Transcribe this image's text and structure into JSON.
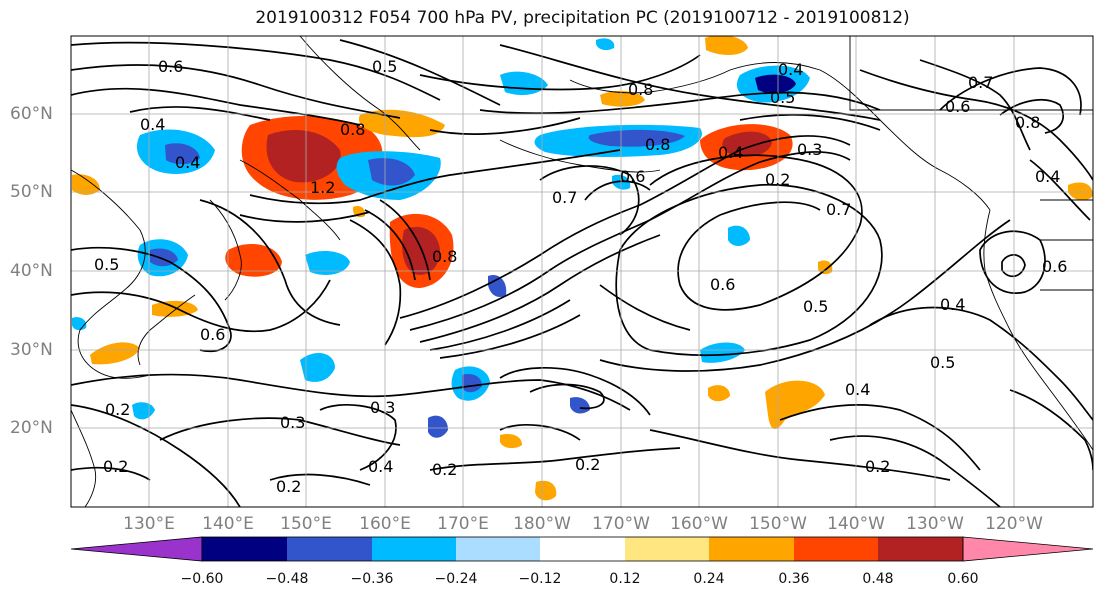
{
  "title": "2019100312 F054 700 hPa PV, precipitation PC (2019100712 - 2019100812)",
  "map": {
    "lat_labels": [
      "60°N",
      "50°N",
      "40°N",
      "30°N",
      "20°N"
    ],
    "lon_labels": [
      "130°E",
      "140°E",
      "150°E",
      "160°E",
      "170°E",
      "180°W",
      "170°W",
      "160°W",
      "150°W",
      "140°W",
      "130°W",
      "120°W"
    ],
    "contour_labels": [
      "0.6",
      "0.5",
      "0.4",
      "0.7",
      "0.8",
      "0.4",
      "0.8",
      "0.5",
      "0.6",
      "0.8",
      "0.4",
      "1.2",
      "0.7",
      "0.6",
      "0.8",
      "0.4",
      "0.3",
      "0.2",
      "0.7",
      "0.6",
      "0.5",
      "0.4",
      "0.5",
      "0.6",
      "0.4",
      "0.4",
      "0.3",
      "0.3",
      "0.2",
      "0.4",
      "0.2",
      "0.2",
      "0.2",
      "0.2",
      "0.2",
      "0.5",
      "0.6",
      "0.8"
    ],
    "colors": {
      "coast": "#000000",
      "grid": "#aaaaaa",
      "contour": "#000000"
    }
  },
  "colorbar": {
    "tick_labels": [
      "−0.60",
      "−0.48",
      "−0.36",
      "−0.24",
      "−0.12",
      "0.12",
      "0.24",
      "0.36",
      "0.48",
      "0.60"
    ],
    "colors": [
      "#9933cc",
      "#000080",
      "#3355cc",
      "#00bbff",
      "#aaddff",
      "#ffffff",
      "#ffe680",
      "#ffa500",
      "#ff4500",
      "#b22222",
      "#ff88aa"
    ]
  }
}
